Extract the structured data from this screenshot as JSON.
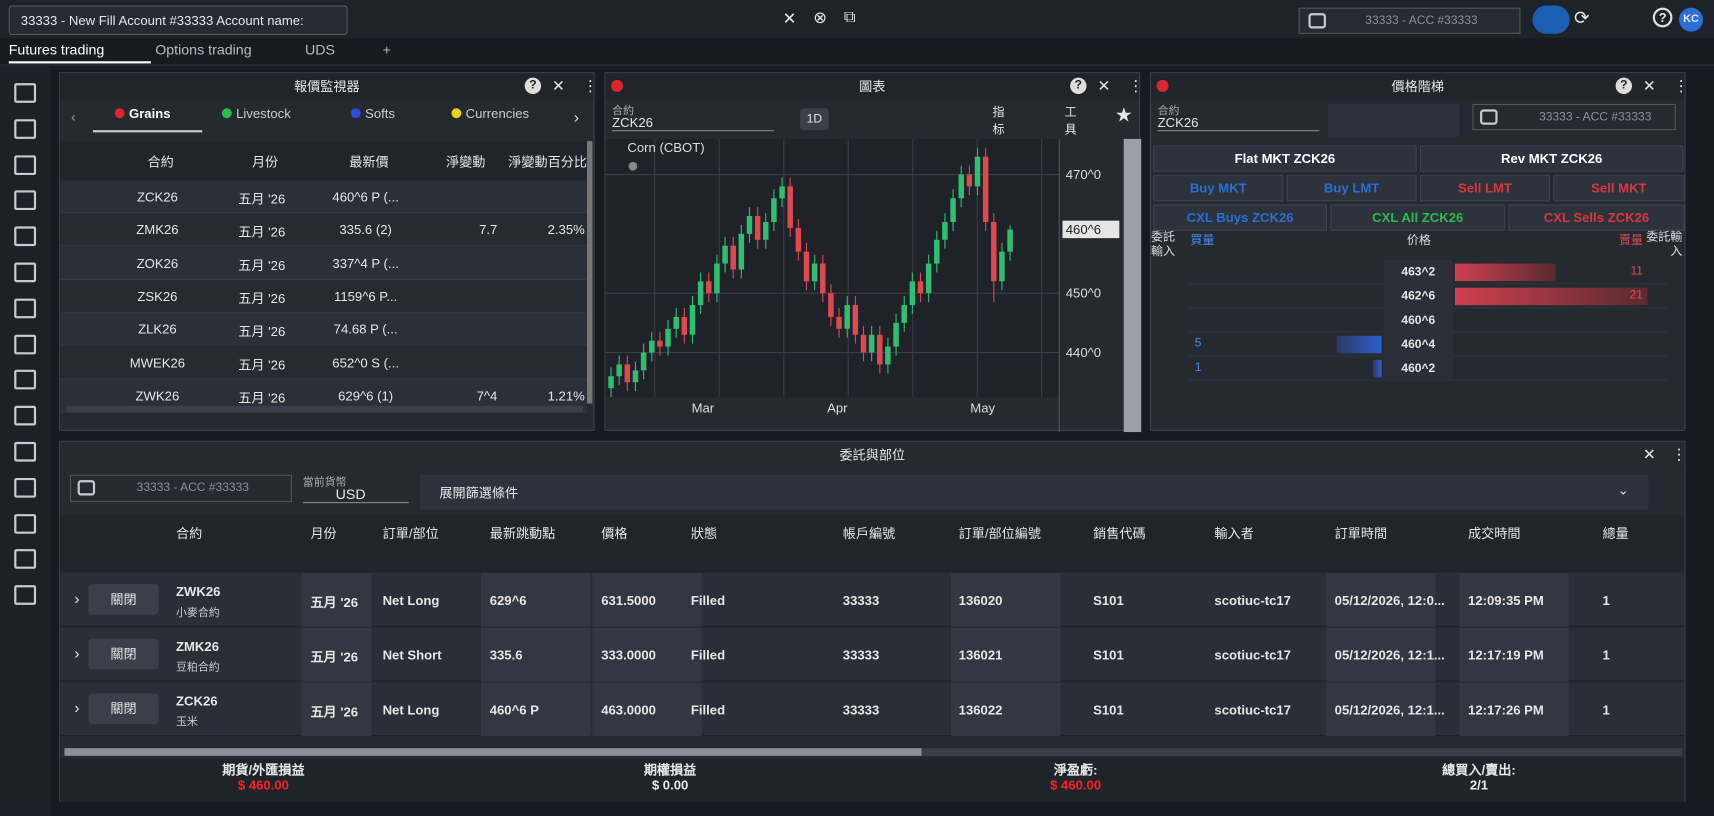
{
  "topbar": {
    "account_select": "33333 - New Fill Account #33333 Account name:",
    "account_box": "33333 - ACC #33333",
    "avatar": "KC"
  },
  "tabs": [
    "Futures trading",
    "Options trading",
    "UDS",
    "+"
  ],
  "quote_monitor": {
    "title": "報價監視器",
    "filters": [
      "Grains",
      "Livestock",
      "Softs",
      "Currencies"
    ],
    "columns": [
      "合約",
      "月份",
      "最新價",
      "淨變動",
      "淨變動百分比"
    ],
    "rows": [
      [
        "ZCK26",
        "五月 '26",
        "460^6 P (...",
        null,
        null
      ],
      [
        "ZMK26",
        "五月 '26",
        "335.6 (2)",
        "7.7",
        "2.35%"
      ],
      [
        "ZOK26",
        "五月 '26",
        "337^4 P (...",
        null,
        null
      ],
      [
        "ZSK26",
        "五月 '26",
        "1159^6 P...",
        null,
        null
      ],
      [
        "ZLK26",
        "五月 '26",
        "74.68 P (...",
        null,
        null
      ],
      [
        "MWEK26",
        "五月 '26",
        "652^0 S (...",
        null,
        null
      ],
      [
        "ZWK26",
        "五月 '26",
        "629^6 (1)",
        "7^4",
        "1.21%"
      ]
    ]
  },
  "chart": {
    "type": "candlestick",
    "title": "圖表",
    "contract_label": "合約",
    "contract": "ZCK26",
    "interval": "1D",
    "tools": [
      "指标",
      "工具"
    ],
    "series_name": "Corn (CBOT)",
    "x_labels": [
      "Mar",
      "Apr",
      "May"
    ],
    "ylim": [
      432.5,
      476
    ],
    "yticks": [
      {
        "value": 440,
        "label": "440^0"
      },
      {
        "value": 450,
        "label": "450^0"
      },
      {
        "value": 470,
        "label": "470^0"
      }
    ],
    "last_price": {
      "value": 460.75,
      "label": "460^6"
    },
    "candles": [
      [
        434,
        437.5,
        432.5,
        436
      ],
      [
        436,
        439.5,
        434.5,
        438
      ],
      [
        438,
        439.5,
        433.5,
        435
      ],
      [
        435,
        438.5,
        433.5,
        437
      ],
      [
        437,
        441.5,
        435.5,
        440
      ],
      [
        440,
        443.5,
        438.5,
        442
      ],
      [
        442,
        443.5,
        439.5,
        441
      ],
      [
        441,
        445.5,
        439.5,
        444
      ],
      [
        444,
        447.5,
        442.5,
        446
      ],
      [
        446,
        447.5,
        441.5,
        443
      ],
      [
        443,
        449.5,
        441.5,
        448
      ],
      [
        448,
        453.5,
        446.5,
        452
      ],
      [
        452,
        453.5,
        448.5,
        450
      ],
      [
        450,
        456.5,
        448.5,
        455
      ],
      [
        455,
        459.5,
        453.5,
        458
      ],
      [
        458,
        459.5,
        452.5,
        454
      ],
      [
        454,
        461.5,
        452.5,
        460
      ],
      [
        460,
        464.5,
        458.5,
        463
      ],
      [
        463,
        464.5,
        457.5,
        459
      ],
      [
        459,
        463.5,
        457.5,
        462
      ],
      [
        462,
        467.5,
        460.5,
        466
      ],
      [
        466,
        469.5,
        464.5,
        468
      ],
      [
        468,
        469.5,
        459.5,
        461
      ],
      [
        461,
        462.5,
        455.5,
        457
      ],
      [
        457,
        458.5,
        450.5,
        452
      ],
      [
        452,
        456.5,
        450.5,
        455
      ],
      [
        455,
        456.5,
        448.5,
        450
      ],
      [
        450,
        451.5,
        444.5,
        446
      ],
      [
        446,
        447.5,
        442.5,
        444
      ],
      [
        444,
        449.5,
        442.5,
        448
      ],
      [
        448,
        449.5,
        441.5,
        443
      ],
      [
        443,
        444.5,
        438.5,
        440
      ],
      [
        440,
        444.5,
        438.5,
        443
      ],
      [
        443,
        444.5,
        436.5,
        438
      ],
      [
        438,
        442.5,
        436.5,
        441
      ],
      [
        441,
        446.5,
        439.5,
        445
      ],
      [
        445,
        449.5,
        443.5,
        448
      ],
      [
        448,
        453.5,
        446.5,
        452
      ],
      [
        452,
        453.5,
        448.5,
        450
      ],
      [
        450,
        456.5,
        448.5,
        455
      ],
      [
        455,
        460.5,
        453.5,
        459
      ],
      [
        459,
        463.5,
        457.5,
        462
      ],
      [
        462,
        467.5,
        460.5,
        466
      ],
      [
        466,
        471.5,
        464.5,
        470
      ],
      [
        470,
        471.5,
        466.5,
        468
      ],
      [
        468,
        474.5,
        466.5,
        473
      ],
      [
        473,
        474.5,
        460.5,
        462
      ],
      [
        462,
        463.5,
        448.5,
        452
      ],
      [
        452,
        458.5,
        450.5,
        457
      ],
      [
        457,
        461.5,
        455.5,
        460.75
      ]
    ]
  },
  "ladder": {
    "title": "價格階梯",
    "contract_label": "合約",
    "contract": "ZCK26",
    "account": "33333 - ACC #33333",
    "buttons": [
      "Flat MKT ZCK26",
      "Rev MKT ZCK26",
      "Buy MKT",
      "Buy LMT",
      "Sell LMT",
      "Sell MKT",
      "CXL Buys ZCK26",
      "CXL All ZCK26",
      "CXL Sells ZCK26"
    ],
    "headers": [
      "委託輸入",
      "買量",
      "价格",
      "賣量",
      "委託輸入"
    ],
    "rows": [
      {
        "price": "463^2",
        "ask": 11
      },
      {
        "price": "462^6",
        "ask": 21
      },
      {
        "price": "460^6"
      },
      {
        "price": "460^4",
        "bid": 5
      },
      {
        "price": "460^2",
        "bid": 1
      }
    ]
  },
  "orders": {
    "title": "委託與部位",
    "account": "33333 - ACC #33333",
    "currency_label": "當前貨幣",
    "currency": "USD",
    "filter": "展開篩選條件",
    "close_button": "關閉",
    "columns": [
      "合約",
      "月份",
      "訂單/部位",
      "最新跳動點",
      "價格",
      "狀態",
      "帳戶編號",
      "訂單/部位編號",
      "銷售代碼",
      "輸入者",
      "訂單時間",
      "成交時間",
      "總量"
    ],
    "rows": [
      {
        "contract": "ZWK26",
        "contract_name": "小麥合約",
        "cells": [
          "五月 '26",
          "Net Long",
          "629^6",
          "631.5000",
          "Filled",
          "33333",
          "136020",
          "S101",
          "scotiuc-tc17",
          "05/12/2026, 12:0...",
          "12:09:35 PM",
          "1"
        ]
      },
      {
        "contract": "ZMK26",
        "contract_name": "豆粕合約",
        "cells": [
          "五月 '26",
          "Net Short",
          "335.6",
          "333.0000",
          "Filled",
          "33333",
          "136021",
          "S101",
          "scotiuc-tc17",
          "05/12/2026, 12:1...",
          "12:17:19 PM",
          "1"
        ]
      },
      {
        "contract": "ZCK26",
        "contract_name": "玉米",
        "cells": [
          "五月 '26",
          "Net Long",
          "460^6 P",
          "463.0000",
          "Filled",
          "33333",
          "136022",
          "S101",
          "scotiuc-tc17",
          "05/12/2026, 12:1...",
          "12:17:26 PM",
          "1"
        ]
      }
    ],
    "footer": [
      {
        "label": "期貨/外匯損益",
        "value": "$ 460.00",
        "color": "#ff2020"
      },
      {
        "label": "期權損益",
        "value": "$ 0.00",
        "color": "#e8e8e8"
      },
      {
        "label": "淨盈虧:",
        "value": "$ 460.00",
        "color": "#ff2020"
      },
      {
        "label": "總買入/賣出:",
        "value": "2/1",
        "color": "#e8e8e8"
      }
    ]
  }
}
